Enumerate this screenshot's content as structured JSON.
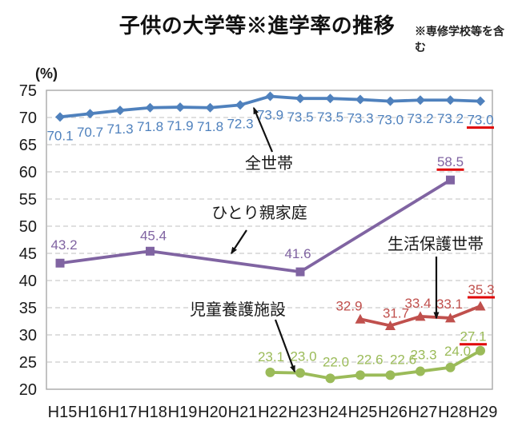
{
  "title": "子供の大学等※進学率の推移",
  "note": "※専修学校等を含む",
  "chart_data": {
    "type": "line",
    "title": "子供の大学等※進学率の推移",
    "note": "※専修学校等を含む",
    "y_unit_label": "(%)",
    "categories": [
      "H15",
      "H16",
      "H17",
      "H18",
      "H19",
      "H20",
      "H21",
      "H22",
      "H23",
      "H24",
      "H25",
      "H26",
      "H27",
      "H28",
      "H29"
    ],
    "ylim": [
      20,
      75
    ],
    "ytick_step": 5,
    "grid": "horizontal-dashed",
    "highlight_underline_color": "#e00000",
    "series": [
      {
        "name": "全世帯",
        "key": "all-households",
        "color": "#4f81bd",
        "marker": "diamond",
        "x_indices": [
          0,
          1,
          2,
          3,
          4,
          5,
          6,
          7,
          8,
          9,
          10,
          11,
          12,
          13,
          14
        ],
        "values": [
          70.1,
          70.7,
          71.3,
          71.8,
          71.9,
          71.8,
          72.3,
          73.9,
          73.5,
          73.5,
          73.3,
          73.0,
          73.2,
          73.2,
          73.0
        ],
        "last_value_underlined": true
      },
      {
        "name": "ひとり親家庭",
        "key": "single-parent-households",
        "color": "#8064a2",
        "marker": "square",
        "x_indices": [
          0,
          3,
          8,
          13
        ],
        "values": [
          43.2,
          45.4,
          41.6,
          58.5
        ],
        "last_value_underlined": true
      },
      {
        "name": "生活保護世帯",
        "key": "public-assistance-households",
        "color": "#c0504d",
        "marker": "triangle",
        "x_indices": [
          10,
          11,
          12,
          13,
          14
        ],
        "values": [
          32.9,
          31.7,
          33.4,
          33.1,
          35.3
        ],
        "last_value_underlined": true
      },
      {
        "name": "児童養護施設",
        "key": "foster-care-facilities",
        "color": "#9bbb59",
        "marker": "circle",
        "x_indices": [
          7,
          8,
          9,
          10,
          11,
          12,
          13,
          14
        ],
        "values": [
          23.1,
          23.0,
          22.0,
          22.6,
          22.6,
          23.3,
          24.0,
          27.1
        ],
        "last_value_underlined": true
      }
    ],
    "annotations": [
      {
        "label": "全世帯",
        "series_key": "all-households"
      },
      {
        "label": "ひとり親家庭",
        "series_key": "single-parent-households"
      },
      {
        "label": "生活保護世帯",
        "series_key": "public-assistance-households"
      },
      {
        "label": "児童養護施設",
        "series_key": "foster-care-facilities"
      }
    ]
  }
}
